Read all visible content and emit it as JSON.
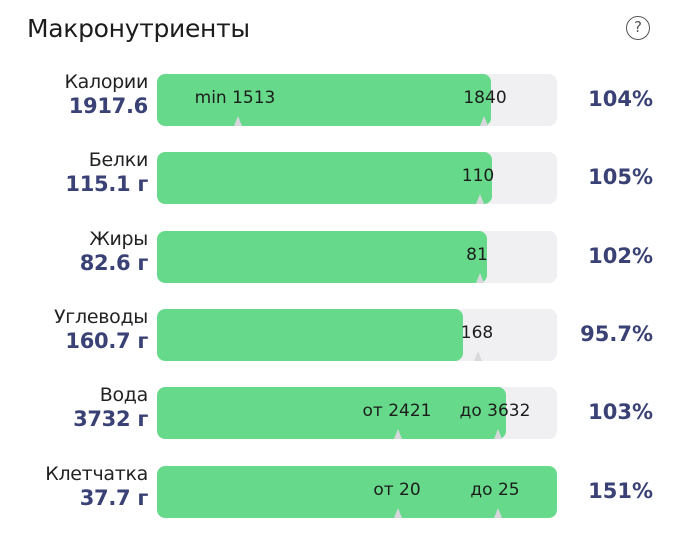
{
  "header": {
    "title": "Макронутриенты",
    "help_icon": "question-circle-icon"
  },
  "colors": {
    "fill": "#66d98a",
    "track": "#f0f0f3",
    "value": "#3a4275"
  },
  "rows": [
    {
      "name": "Калории",
      "amount": "1917.6",
      "percent": "104%",
      "fill_fraction": 0.835,
      "markers": [
        {
          "label": "min 1513"
        },
        {
          "label": "1840"
        }
      ]
    },
    {
      "name": "Белки",
      "amount": "115.1 г",
      "percent": "105%",
      "fill_fraction": 0.8375,
      "markers": [
        {
          "label": "110"
        }
      ]
    },
    {
      "name": "Жиры",
      "amount": "82.6 г",
      "percent": "102%",
      "fill_fraction": 0.825,
      "markers": [
        {
          "label": "81"
        }
      ]
    },
    {
      "name": "Углеводы",
      "amount": "160.7 г",
      "percent": "95.7%",
      "fill_fraction": 0.765,
      "markers": [
        {
          "label": "168"
        }
      ]
    },
    {
      "name": "Вода",
      "amount": "3732 г",
      "percent": "103%",
      "fill_fraction": 0.8725,
      "markers": [
        {
          "label": "от 2421"
        },
        {
          "label": "до 3632"
        }
      ]
    },
    {
      "name": "Клетчатка",
      "amount": "37.7 г",
      "percent": "151%",
      "fill_fraction": 1.0,
      "markers": [
        {
          "label": "от 20"
        },
        {
          "label": "до 25"
        }
      ]
    }
  ]
}
